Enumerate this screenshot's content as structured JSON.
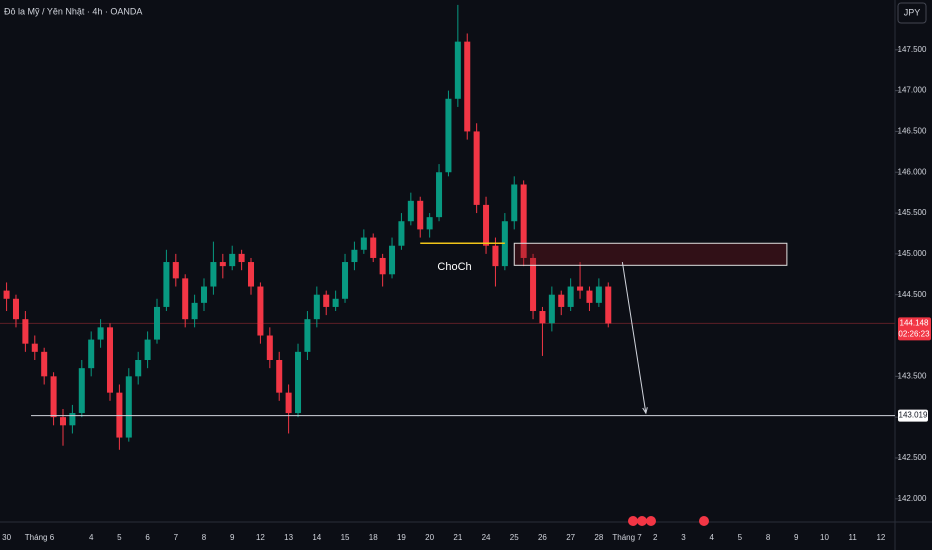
{
  "chart_data": {
    "type": "candlestick",
    "title": "Đô la Mỹ / Yên Nhật · 4h · OANDA",
    "currency": "JPY",
    "up_color": "#089981",
    "down_color": "#f23645",
    "xlim": [
      -0.7,
      94.5
    ],
    "ylim": [
      141.74,
      148.11
    ],
    "candles": [
      [
        144.55,
        144.65,
        144.3,
        144.45
      ],
      [
        144.45,
        144.5,
        144.1,
        144.2
      ],
      [
        144.2,
        144.3,
        143.8,
        143.9
      ],
      [
        143.9,
        144.0,
        143.7,
        143.8
      ],
      [
        143.8,
        143.85,
        143.4,
        143.5
      ],
      [
        143.5,
        143.55,
        142.9,
        143.0
      ],
      [
        143.0,
        143.1,
        142.65,
        142.9
      ],
      [
        142.9,
        143.15,
        142.8,
        143.05
      ],
      [
        143.05,
        143.7,
        143.0,
        143.6
      ],
      [
        143.6,
        144.05,
        143.5,
        143.95
      ],
      [
        143.95,
        144.2,
        143.85,
        144.1
      ],
      [
        144.1,
        144.15,
        143.2,
        143.3
      ],
      [
        143.3,
        143.4,
        142.6,
        142.75
      ],
      [
        142.75,
        143.6,
        142.7,
        143.5
      ],
      [
        143.5,
        143.8,
        143.4,
        143.7
      ],
      [
        143.7,
        144.05,
        143.6,
        143.95
      ],
      [
        143.95,
        144.45,
        143.9,
        144.35
      ],
      [
        144.35,
        145.05,
        144.3,
        144.9
      ],
      [
        144.9,
        145.0,
        144.6,
        144.7
      ],
      [
        144.7,
        144.75,
        144.1,
        144.2
      ],
      [
        144.2,
        144.5,
        144.1,
        144.4
      ],
      [
        144.4,
        144.7,
        144.3,
        144.6
      ],
      [
        144.6,
        145.15,
        144.5,
        144.9
      ],
      [
        144.9,
        145.0,
        144.7,
        144.85
      ],
      [
        144.85,
        145.1,
        144.8,
        145.0
      ],
      [
        145.0,
        145.05,
        144.8,
        144.9
      ],
      [
        144.9,
        144.95,
        144.5,
        144.6
      ],
      [
        144.6,
        144.65,
        143.9,
        144.0
      ],
      [
        144.0,
        144.1,
        143.6,
        143.7
      ],
      [
        143.7,
        143.8,
        143.2,
        143.3
      ],
      [
        143.3,
        143.4,
        142.8,
        143.05
      ],
      [
        143.05,
        143.9,
        143.0,
        143.8
      ],
      [
        143.8,
        144.3,
        143.7,
        144.2
      ],
      [
        144.2,
        144.6,
        144.1,
        144.5
      ],
      [
        144.5,
        144.55,
        144.25,
        144.35
      ],
      [
        144.35,
        144.55,
        144.3,
        144.45
      ],
      [
        144.45,
        145.0,
        144.4,
        144.9
      ],
      [
        144.9,
        145.15,
        144.8,
        145.05
      ],
      [
        145.05,
        145.3,
        145.0,
        145.2
      ],
      [
        145.2,
        145.25,
        144.9,
        144.95
      ],
      [
        144.95,
        145.0,
        144.6,
        144.75
      ],
      [
        144.75,
        145.2,
        144.7,
        145.1
      ],
      [
        145.1,
        145.5,
        145.05,
        145.4
      ],
      [
        145.4,
        145.75,
        145.35,
        145.65
      ],
      [
        145.65,
        145.7,
        145.2,
        145.3
      ],
      [
        145.3,
        145.5,
        145.2,
        145.45
      ],
      [
        145.45,
        146.1,
        145.4,
        146.0
      ],
      [
        146.0,
        147.0,
        145.95,
        146.9
      ],
      [
        146.9,
        148.05,
        146.8,
        147.6
      ],
      [
        147.6,
        147.7,
        146.4,
        146.5
      ],
      [
        146.5,
        146.6,
        145.5,
        145.6
      ],
      [
        145.6,
        145.7,
        145.0,
        145.1
      ],
      [
        145.1,
        145.2,
        144.6,
        144.85
      ],
      [
        144.85,
        145.5,
        144.8,
        145.4
      ],
      [
        145.4,
        145.95,
        145.3,
        145.85
      ],
      [
        145.85,
        145.9,
        144.85,
        144.95
      ],
      [
        144.95,
        145.0,
        144.2,
        144.3
      ],
      [
        144.3,
        144.35,
        143.75,
        144.15
      ],
      [
        144.15,
        144.6,
        144.05,
        144.5
      ],
      [
        144.5,
        144.55,
        144.25,
        144.35
      ],
      [
        144.35,
        144.7,
        144.3,
        144.6
      ],
      [
        144.6,
        144.9,
        144.45,
        144.55
      ],
      [
        144.55,
        144.6,
        144.3,
        144.4
      ],
      [
        144.4,
        144.7,
        144.35,
        144.6
      ],
      [
        144.6,
        144.65,
        144.1,
        144.148
      ]
    ],
    "yticks": [
      {
        "value": 142.0,
        "label": "142.000"
      },
      {
        "value": 142.5,
        "label": "142.500"
      },
      {
        "value": 143.0,
        "label": "143.000"
      },
      {
        "value": 143.5,
        "label": "143.500"
      },
      {
        "value": 144.5,
        "label": "144.500"
      },
      {
        "value": 145.0,
        "label": "145.000"
      },
      {
        "value": 145.5,
        "label": "145.500"
      },
      {
        "value": 146.0,
        "label": "146.000"
      },
      {
        "value": 146.5,
        "label": "146.500"
      },
      {
        "value": 147.0,
        "label": "147.000"
      },
      {
        "value": 147.5,
        "label": "147.500"
      }
    ],
    "xticks": [
      {
        "value": 0,
        "label": "30"
      },
      {
        "value": 3.5,
        "label": "Tháng 6"
      },
      {
        "value": 9,
        "label": "4"
      },
      {
        "value": 12,
        "label": "5"
      },
      {
        "value": 15,
        "label": "6"
      },
      {
        "value": 18,
        "label": "7"
      },
      {
        "value": 21,
        "label": "8"
      },
      {
        "value": 24,
        "label": "9"
      },
      {
        "value": 27,
        "label": "12"
      },
      {
        "value": 30,
        "label": "13"
      },
      {
        "value": 33,
        "label": "14"
      },
      {
        "value": 36,
        "label": "15"
      },
      {
        "value": 39,
        "label": "18"
      },
      {
        "value": 42,
        "label": "19"
      },
      {
        "value": 45,
        "label": "20"
      },
      {
        "value": 48,
        "label": "21"
      },
      {
        "value": 51,
        "label": "24"
      },
      {
        "value": 54,
        "label": "25"
      },
      {
        "value": 57,
        "label": "26"
      },
      {
        "value": 60,
        "label": "27"
      },
      {
        "value": 63,
        "label": "28"
      },
      {
        "value": 66,
        "label": "Tháng 7"
      },
      {
        "value": 69,
        "label": "2"
      },
      {
        "value": 72,
        "label": "3"
      },
      {
        "value": 75,
        "label": "4"
      },
      {
        "value": 78,
        "label": "5"
      },
      {
        "value": 81,
        "label": "8"
      },
      {
        "value": 84,
        "label": "9"
      },
      {
        "value": 87,
        "label": "10"
      },
      {
        "value": 90,
        "label": "11"
      },
      {
        "value": 93,
        "label": "12"
      }
    ],
    "last_price": 144.148,
    "countdown": "02:26:23",
    "level": {
      "price": 143.019,
      "x": [
        2.6,
        94.5
      ]
    },
    "choch": {
      "label": "ChoCh",
      "price": 145.13,
      "x": [
        44,
        53
      ]
    },
    "zone": {
      "x": [
        54,
        83
      ],
      "y": [
        144.86,
        145.13
      ]
    },
    "arrow": {
      "x": [
        65.5,
        68
      ],
      "y": [
        144.9,
        143.05
      ]
    }
  }
}
